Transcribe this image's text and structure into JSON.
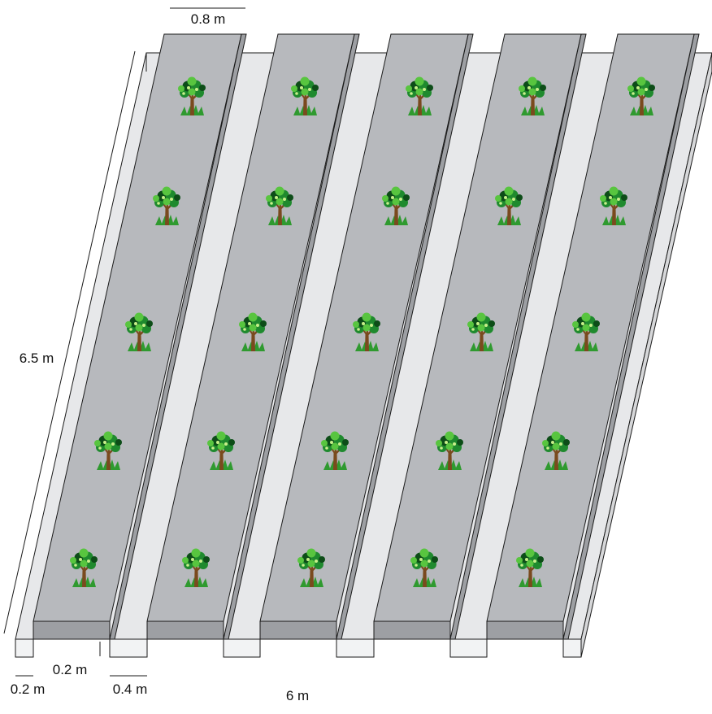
{
  "colors": {
    "bed_top": "#b7b9bd",
    "bed_side": "#9d9fa3",
    "base_top": "#e7e8ea",
    "base_front": "#f2f3f4",
    "base_side": "#d6d7d9",
    "outline": "#1a1a1a",
    "tree_leaf": "#1f8a2e",
    "tree_leaf_light": "#58c53f",
    "tree_leaf_dark": "#0d4d18",
    "tree_trunk": "#7a4a1e",
    "grass": "#2f9a2f"
  },
  "beds": {
    "count": 5,
    "trees_per_bed": 5
  },
  "labels": {
    "bed_width": "0.8 m",
    "length": "6.5 m",
    "raise_height": "0.2 m",
    "base_edge": "0.2 m",
    "gap_width": "0.4 m",
    "total_width": "6 m"
  }
}
